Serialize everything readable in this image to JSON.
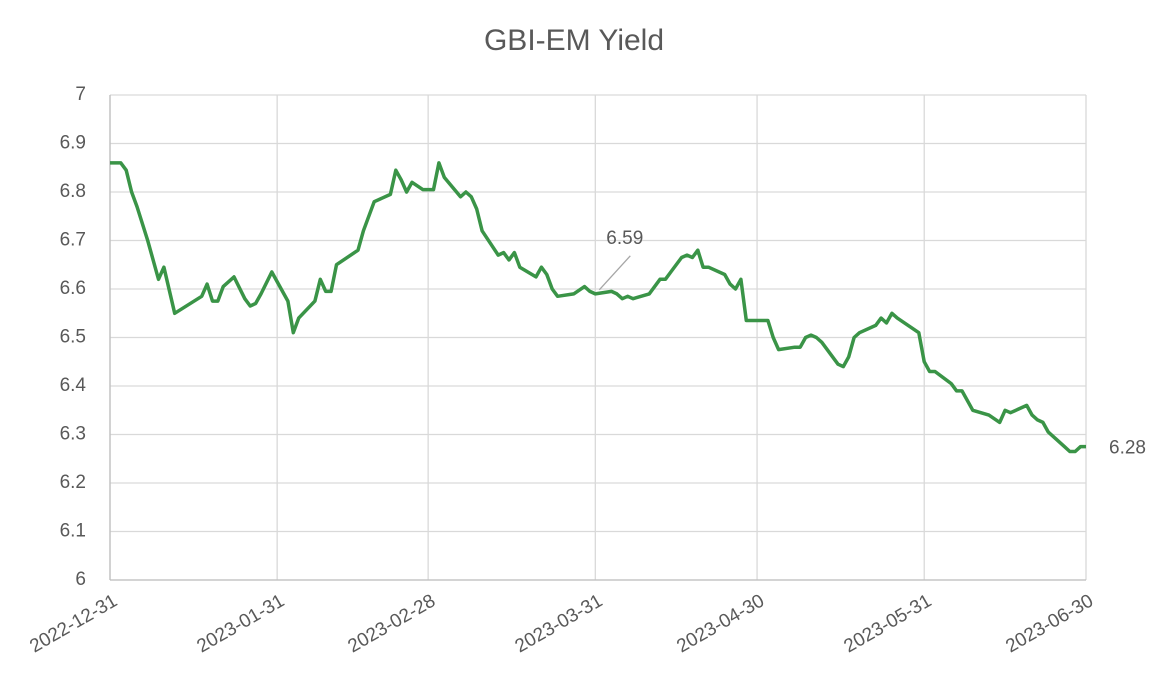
{
  "chart_data": {
    "type": "line",
    "title": "GBI-EM Yield",
    "x": [
      "2022-12-31",
      "2023-01-02",
      "2023-01-03",
      "2023-01-04",
      "2023-01-05",
      "2023-01-07",
      "2023-01-09",
      "2023-01-10",
      "2023-01-12",
      "2023-01-17",
      "2023-01-18",
      "2023-01-19",
      "2023-01-20",
      "2023-01-21",
      "2023-01-23",
      "2023-01-25",
      "2023-01-26",
      "2023-01-27",
      "2023-01-28",
      "2023-01-30",
      "2023-02-02",
      "2023-02-03",
      "2023-02-04",
      "2023-02-07",
      "2023-02-08",
      "2023-02-09",
      "2023-02-10",
      "2023-02-11",
      "2023-02-15",
      "2023-02-16",
      "2023-02-18",
      "2023-02-21",
      "2023-02-22",
      "2023-02-23",
      "2023-02-24",
      "2023-02-25",
      "2023-02-27",
      "2023-03-01",
      "2023-03-02",
      "2023-03-03",
      "2023-03-06",
      "2023-03-07",
      "2023-03-08",
      "2023-03-09",
      "2023-03-10",
      "2023-03-13",
      "2023-03-14",
      "2023-03-15",
      "2023-03-16",
      "2023-03-17",
      "2023-03-20",
      "2023-03-21",
      "2023-03-22",
      "2023-03-23",
      "2023-03-24",
      "2023-03-27",
      "2023-03-29",
      "2023-03-30",
      "2023-03-31",
      "2023-04-03",
      "2023-04-04",
      "2023-04-05",
      "2023-04-06",
      "2023-04-07",
      "2023-04-10",
      "2023-04-12",
      "2023-04-13",
      "2023-04-14",
      "2023-04-16",
      "2023-04-17",
      "2023-04-18",
      "2023-04-19",
      "2023-04-20",
      "2023-04-21",
      "2023-04-24",
      "2023-04-25",
      "2023-04-26",
      "2023-04-27",
      "2023-04-28",
      "2023-05-02",
      "2023-05-03",
      "2023-05-04",
      "2023-05-07",
      "2023-05-08",
      "2023-05-09",
      "2023-05-10",
      "2023-05-11",
      "2023-05-12",
      "2023-05-15",
      "2023-05-16",
      "2023-05-17",
      "2023-05-18",
      "2023-05-19",
      "2023-05-22",
      "2023-05-23",
      "2023-05-24",
      "2023-05-25",
      "2023-05-26",
      "2023-05-30",
      "2023-05-31",
      "2023-06-01",
      "2023-06-02",
      "2023-06-05",
      "2023-06-06",
      "2023-06-07",
      "2023-06-09",
      "2023-06-12",
      "2023-06-14",
      "2023-06-15",
      "2023-06-16",
      "2023-06-19",
      "2023-06-20",
      "2023-06-21",
      "2023-06-22",
      "2023-06-23",
      "2023-06-26",
      "2023-06-27",
      "2023-06-28",
      "2023-06-29",
      "2023-06-30"
    ],
    "series": [
      {
        "name": "GBI-EM Yield",
        "color": "#3a9447",
        "values": [
          6.86,
          6.86,
          6.845,
          6.8,
          6.77,
          6.7,
          6.62,
          6.645,
          6.55,
          6.585,
          6.61,
          6.575,
          6.575,
          6.605,
          6.625,
          6.58,
          6.565,
          6.57,
          6.59,
          6.635,
          6.575,
          6.51,
          6.54,
          6.575,
          6.62,
          6.595,
          6.595,
          6.65,
          6.68,
          6.72,
          6.78,
          6.795,
          6.845,
          6.825,
          6.8,
          6.82,
          6.805,
          6.805,
          6.86,
          6.83,
          6.79,
          6.8,
          6.79,
          6.765,
          6.72,
          6.67,
          6.675,
          6.66,
          6.675,
          6.645,
          6.625,
          6.645,
          6.63,
          6.6,
          6.585,
          6.59,
          6.605,
          6.595,
          6.59,
          6.595,
          6.59,
          6.58,
          6.585,
          6.58,
          6.59,
          6.62,
          6.62,
          6.635,
          6.665,
          6.67,
          6.665,
          6.68,
          6.645,
          6.645,
          6.63,
          6.61,
          6.6,
          6.62,
          6.535,
          6.535,
          6.5,
          6.475,
          6.48,
          6.48,
          6.5,
          6.505,
          6.5,
          6.49,
          6.445,
          6.44,
          6.46,
          6.5,
          6.51,
          6.525,
          6.54,
          6.53,
          6.55,
          6.54,
          6.51,
          6.45,
          6.43,
          6.43,
          6.405,
          6.39,
          6.39,
          6.35,
          6.34,
          6.325,
          6.35,
          6.345,
          6.36,
          6.34,
          6.33,
          6.325,
          6.305,
          6.275,
          6.265,
          6.265,
          6.275,
          6.275
        ],
        "value_labels": [
          null,
          null,
          null,
          null,
          null,
          null,
          null,
          null,
          null,
          null,
          null,
          null,
          null,
          null,
          null,
          null,
          null,
          null,
          null,
          null,
          null,
          null,
          null,
          null,
          null,
          null,
          null,
          null,
          null,
          null,
          null,
          null,
          null,
          null,
          null,
          null,
          null,
          null,
          null,
          null,
          null,
          null,
          null,
          null,
          null,
          null,
          null,
          null,
          null,
          null,
          null,
          null,
          null,
          null,
          null,
          null,
          null,
          null,
          "6.59",
          null,
          null,
          null,
          null,
          null,
          null,
          null,
          null,
          null,
          null,
          null,
          null,
          null,
          null,
          null,
          null,
          null,
          null,
          null,
          null,
          null,
          null,
          null,
          null,
          null,
          null,
          null,
          null,
          null,
          null,
          null,
          null,
          null,
          null,
          null,
          null,
          null,
          null,
          null,
          null,
          null,
          null,
          null,
          null,
          null,
          null,
          null,
          null,
          null,
          null,
          null,
          null,
          null,
          null,
          null,
          null,
          null,
          null,
          null,
          null,
          "6.28"
        ]
      }
    ],
    "xlim": [
      "2022-12-31",
      "2023-06-30"
    ],
    "xticks": [
      "2022-12-31",
      "2023-01-31",
      "2023-02-28",
      "2023-03-31",
      "2023-04-30",
      "2023-05-31",
      "2023-06-30"
    ],
    "ylim": [
      6,
      7
    ],
    "yticks": [
      6,
      6.1,
      6.2,
      6.3,
      6.4,
      6.5,
      6.6,
      6.7,
      6.8,
      6.9,
      7
    ],
    "grid": true
  }
}
